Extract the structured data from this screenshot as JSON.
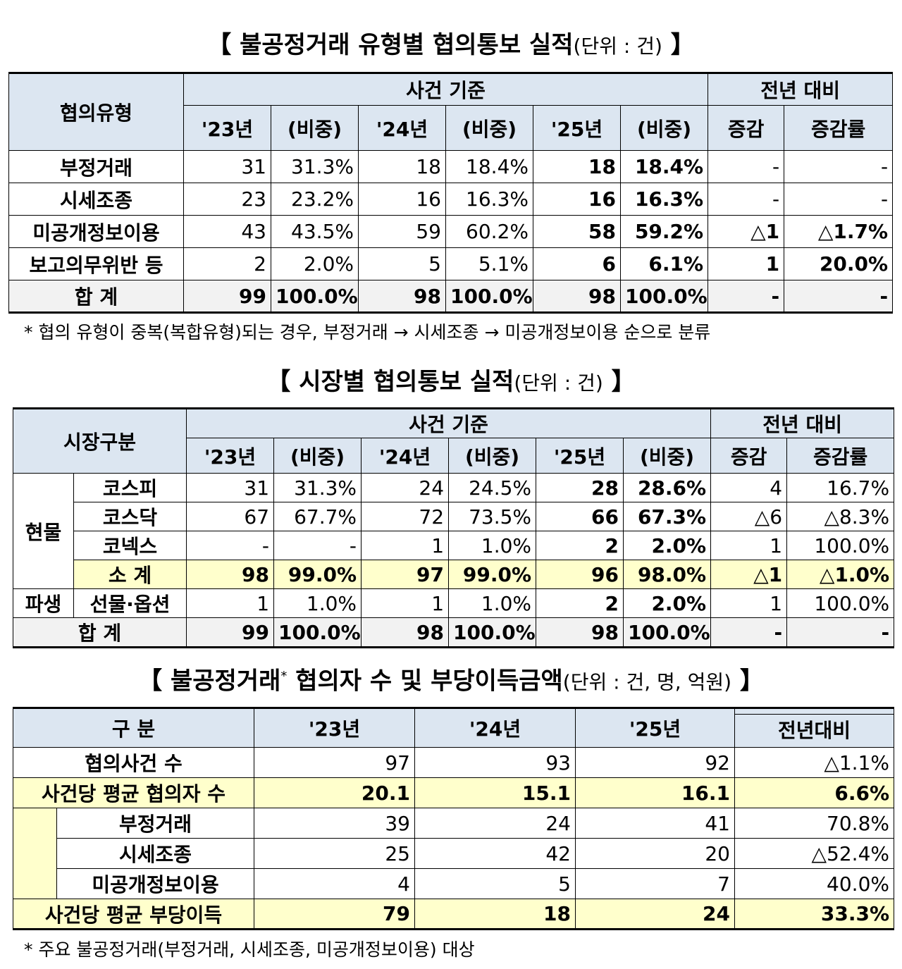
{
  "table1": {
    "title": "【 불공정거래 유형별 협의통보 실적",
    "unit": "(단위 : 건)",
    "title_end": " 】",
    "head": {
      "type": "협의유형",
      "group_case": "사건 기준",
      "group_yoy": "전년 대비",
      "y23": "'23년",
      "y24": "'24년",
      "y25": "'25년",
      "share": "(비중)",
      "chg": "증감",
      "rate": "증감률"
    },
    "rows": [
      {
        "label": "부정거래",
        "v23": "31",
        "s23": "31.3%",
        "v24": "18",
        "s24": "18.4%",
        "v25": "18",
        "s25": "18.4%",
        "chg": "-",
        "rate": "-"
      },
      {
        "label": "시세조종",
        "v23": "23",
        "s23": "23.2%",
        "v24": "16",
        "s24": "16.3%",
        "v25": "16",
        "s25": "16.3%",
        "chg": "-",
        "rate": "-"
      },
      {
        "label": "미공개정보이용",
        "v23": "43",
        "s23": "43.5%",
        "v24": "59",
        "s24": "60.2%",
        "v25": "58",
        "s25": "59.2%",
        "chg": "△1",
        "rate": "△1.7%"
      },
      {
        "label": "보고의무위반 등",
        "v23": "2",
        "s23": "2.0%",
        "v24": "5",
        "s24": "5.1%",
        "v25": "6",
        "s25": "6.1%",
        "chg": "1",
        "rate": "20.0%"
      }
    ],
    "total": {
      "label": "합  계",
      "v23": "99",
      "s23": "100.0%",
      "v24": "98",
      "s24": "100.0%",
      "v25": "98",
      "s25": "100.0%",
      "chg": "-",
      "rate": "-"
    },
    "note": "* 협의 유형이 중복(복합유형)되는 경우, 부정거래 → 시세조종 → 미공개정보이용 순으로 분류"
  },
  "table2": {
    "title": "【 시장별 협의통보 실적",
    "unit": "(단위 : 건)",
    "title_end": " 】",
    "head": {
      "type": "시장구분",
      "group_case": "사건 기준",
      "group_yoy": "전년 대비",
      "y23": "'23년",
      "y24": "'24년",
      "y25": "'25년",
      "share": "(비중)",
      "chg": "증감",
      "rate": "증감률"
    },
    "spot_label": "현물",
    "deriv_label": "파생",
    "rows": [
      {
        "label": "코스피",
        "v23": "31",
        "s23": "31.3%",
        "v24": "24",
        "s24": "24.5%",
        "v25": "28",
        "s25": "28.6%",
        "chg": "4",
        "rate": "16.7%"
      },
      {
        "label": "코스닥",
        "v23": "67",
        "s23": "67.7%",
        "v24": "72",
        "s24": "73.5%",
        "v25": "66",
        "s25": "67.3%",
        "chg": "△6",
        "rate": "△8.3%"
      },
      {
        "label": "코넥스",
        "v23": "-",
        "s23": "-",
        "v24": "1",
        "s24": "1.0%",
        "v25": "2",
        "s25": "2.0%",
        "chg": "1",
        "rate": "100.0%"
      }
    ],
    "subtotal": {
      "label": "소  계",
      "v23": "98",
      "s23": "99.0%",
      "v24": "97",
      "s24": "99.0%",
      "v25": "96",
      "s25": "98.0%",
      "chg": "△1",
      "rate": "△1.0%"
    },
    "deriv": {
      "label": "선물·옵션",
      "v23": "1",
      "s23": "1.0%",
      "v24": "1",
      "s24": "1.0%",
      "v25": "2",
      "s25": "2.0%",
      "chg": "1",
      "rate": "100.0%"
    },
    "total": {
      "label": "합  계",
      "v23": "99",
      "s23": "100.0%",
      "v24": "98",
      "s24": "100.0%",
      "v25": "98",
      "s25": "100.0%",
      "chg": "-",
      "rate": "-"
    }
  },
  "table3": {
    "title": "【 불공정거래",
    "title_sup": "*",
    "title_rest": " 협의자 수 및 부당이득금액",
    "unit": "(단위 : 건, 명, 억원)",
    "title_end": " 】",
    "head": {
      "cat": "구  분",
      "y23": "'23년",
      "y24": "'24년",
      "y25": "'25년",
      "yoy": "전년대비"
    },
    "rows": [
      {
        "label": "협의사건 수",
        "v23": "97",
        "v24": "93",
        "v25": "92",
        "yoy": "△1.1%",
        "kind": "plain"
      },
      {
        "label": "사건당 평균 협의자 수",
        "v23": "20.1",
        "v24": "15.1",
        "v25": "16.1",
        "yoy": "6.6%",
        "kind": "hl"
      },
      {
        "label": "부정거래",
        "v23": "39",
        "v24": "24",
        "v25": "41",
        "yoy": "70.8%",
        "kind": "sub"
      },
      {
        "label": "시세조종",
        "v23": "25",
        "v24": "42",
        "v25": "20",
        "yoy": "△52.4%",
        "kind": "sub"
      },
      {
        "label": "미공개정보이용",
        "v23": "4",
        "v24": "5",
        "v25": "7",
        "yoy": "40.0%",
        "kind": "sub"
      },
      {
        "label": "사건당 평균 부당이득",
        "v23": "79",
        "v24": "18",
        "v25": "24",
        "yoy": "33.3%",
        "kind": "hl"
      }
    ],
    "note": "* 주요 불공정거래(부정거래, 시세조종, 미공개정보이용) 대상"
  }
}
